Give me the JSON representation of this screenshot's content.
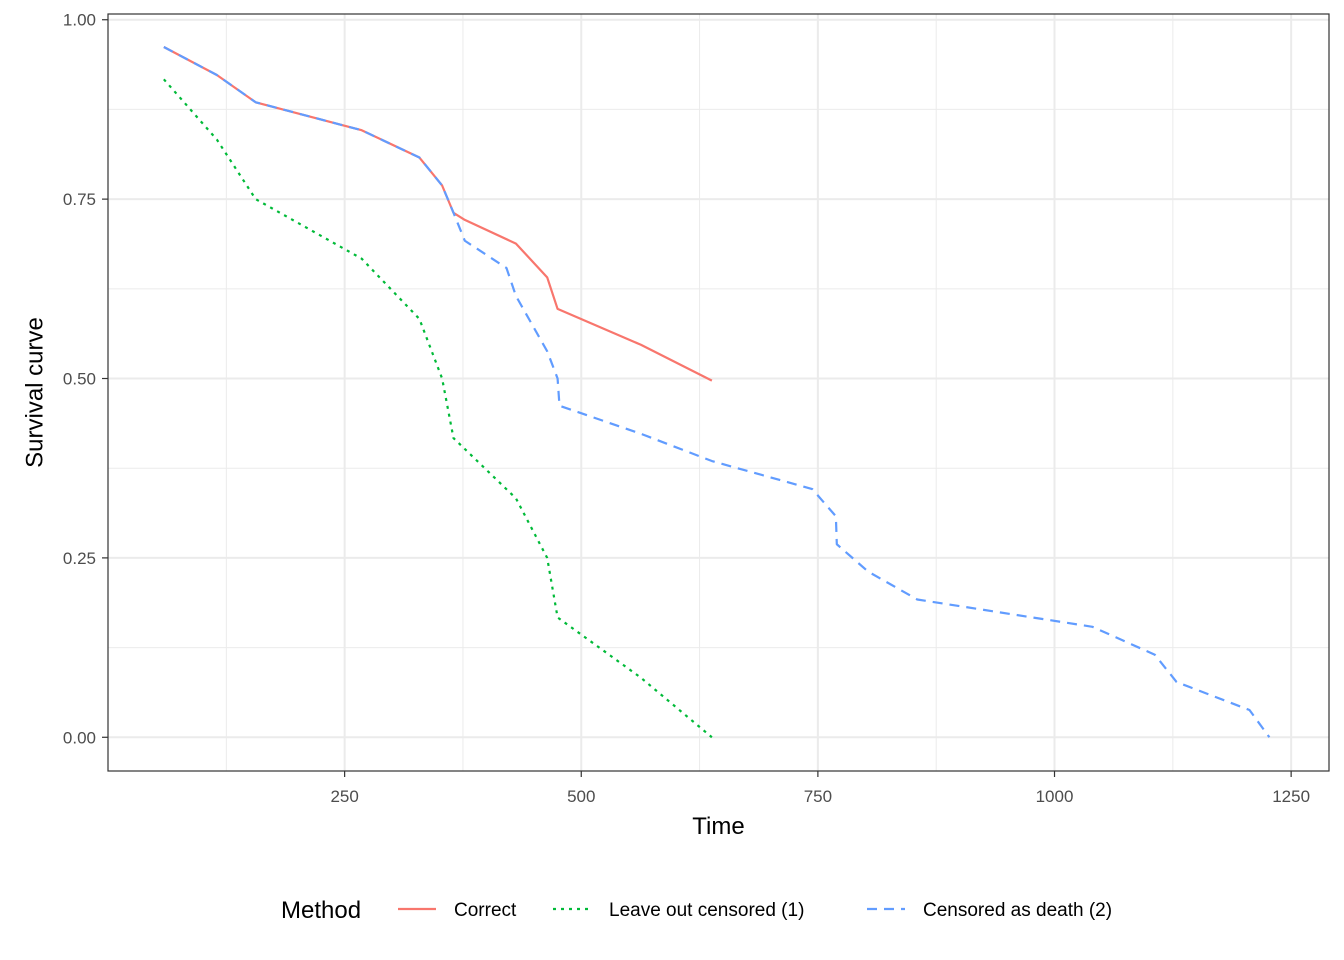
{
  "chart_data": {
    "type": "line",
    "title": "",
    "xlabel": "Time",
    "ylabel": "Survival curve",
    "xlim": [
      0,
      1290
    ],
    "ylim": [
      -0.047,
      1.008
    ],
    "x_ticks": [
      250,
      500,
      750,
      1000,
      1250
    ],
    "x_tick_labels": [
      "250",
      "500",
      "750",
      "1000",
      "1250"
    ],
    "y_ticks": [
      0,
      0.25,
      0.5,
      0.75,
      1.0
    ],
    "y_tick_labels": [
      "0.00",
      "0.25",
      "0.50",
      "0.75",
      "1.00"
    ],
    "grid": true,
    "legend": {
      "title": "Method",
      "position": "bottom"
    },
    "series": [
      {
        "name": "Correct",
        "color": "#F8766D",
        "dash": "solid",
        "points": [
          [
            59,
            0.962
          ],
          [
            115,
            0.923
          ],
          [
            156,
            0.885
          ],
          [
            268,
            0.846
          ],
          [
            329,
            0.808
          ],
          [
            353,
            0.769
          ],
          [
            365,
            0.731
          ],
          [
            377,
            0.721
          ],
          [
            431,
            0.688
          ],
          [
            464,
            0.641
          ],
          [
            475,
            0.597
          ],
          [
            563,
            0.547
          ],
          [
            638,
            0.497
          ]
        ]
      },
      {
        "name": "Leave out censored (1)",
        "color": "#00BA38",
        "dash": "dotted",
        "points": [
          [
            59,
            0.917
          ],
          [
            115,
            0.833
          ],
          [
            156,
            0.75
          ],
          [
            268,
            0.667
          ],
          [
            329,
            0.583
          ],
          [
            353,
            0.5
          ],
          [
            365,
            0.417
          ],
          [
            431,
            0.333
          ],
          [
            464,
            0.25
          ],
          [
            475,
            0.167
          ],
          [
            563,
            0.083
          ],
          [
            638,
            0.0
          ]
        ]
      },
      {
        "name": "Censored as death (2)",
        "color": "#619CFF",
        "dash": "dashed",
        "points": [
          [
            59,
            0.962
          ],
          [
            115,
            0.923
          ],
          [
            156,
            0.885
          ],
          [
            268,
            0.846
          ],
          [
            329,
            0.808
          ],
          [
            353,
            0.769
          ],
          [
            365,
            0.731
          ],
          [
            377,
            0.692
          ],
          [
            421,
            0.654
          ],
          [
            431,
            0.615
          ],
          [
            464,
            0.538
          ],
          [
            475,
            0.5
          ],
          [
            477,
            0.462
          ],
          [
            563,
            0.423
          ],
          [
            638,
            0.385
          ],
          [
            744,
            0.346
          ],
          [
            769,
            0.308
          ],
          [
            770,
            0.269
          ],
          [
            803,
            0.231
          ],
          [
            855,
            0.192
          ],
          [
            1040,
            0.154
          ],
          [
            1106,
            0.115
          ],
          [
            1129,
            0.077
          ],
          [
            1206,
            0.038
          ],
          [
            1227,
            0.0
          ]
        ]
      }
    ]
  }
}
